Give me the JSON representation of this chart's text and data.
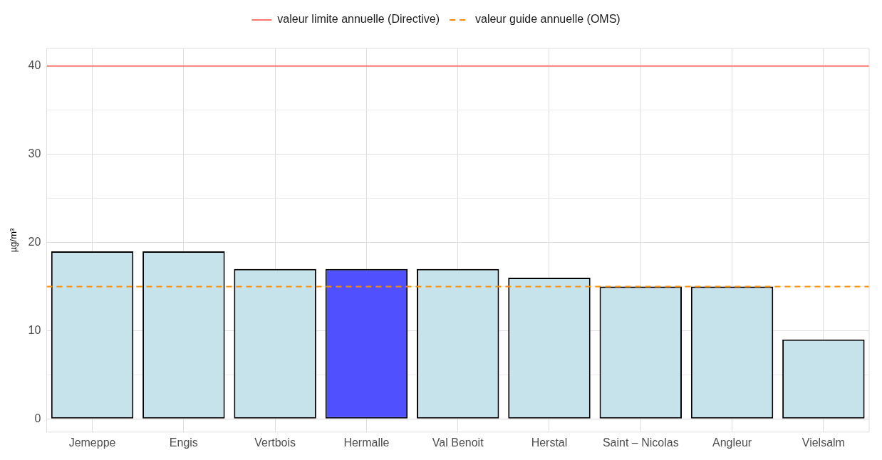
{
  "chart_data": {
    "type": "bar",
    "ylabel": "µg/m³",
    "categories": [
      "Jemeppe",
      "Engis",
      "Vertbois",
      "Hermalle",
      "Val Benoit",
      "Herstal",
      "Saint – Nicolas",
      "Angleur",
      "Vielsalm"
    ],
    "values": [
      19,
      19,
      17,
      17,
      17,
      16,
      15,
      15,
      9
    ],
    "colors": [
      "#c6e2eb",
      "#c6e2eb",
      "#c6e2eb",
      "#5050ff",
      "#c6e2eb",
      "#c6e2eb",
      "#c6e2eb",
      "#c6e2eb",
      "#c6e2eb"
    ],
    "ylim": [
      -1.5,
      42
    ],
    "yticks": [
      0,
      {
        "value": 5,
        "label": null
      },
      10,
      {
        "value": 15,
        "label": null
      },
      20,
      {
        "value": 25,
        "label": null
      },
      30,
      {
        "value": 35,
        "label": null
      },
      40
    ],
    "grid": true,
    "legend": "top",
    "ref_lines": [
      {
        "axis": "y",
        "value": 40,
        "label": "valeur limite annuelle (Directive)",
        "color": "#f8766d",
        "line_style": "solid"
      },
      {
        "axis": "y",
        "value": 15,
        "label": "valeur guide annuelle (OMS)",
        "color": "#ff8c00",
        "line_style": "dashed"
      }
    ]
  }
}
